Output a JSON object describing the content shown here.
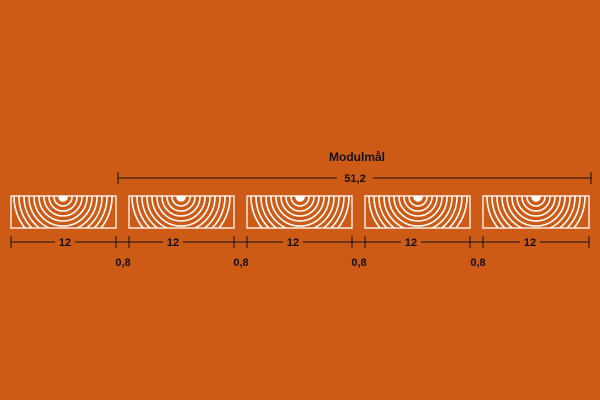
{
  "colors": {
    "background": "#cd5a15",
    "board_line": "#ffffff",
    "dimension_line": "#111111",
    "text": "#111111"
  },
  "module_label": "Modulmål",
  "module_value": "51,2",
  "board_labels": [
    "12",
    "12",
    "12",
    "12",
    "12"
  ],
  "gap_labels": [
    "0,8",
    "0,8",
    "0,8",
    "0,8"
  ]
}
